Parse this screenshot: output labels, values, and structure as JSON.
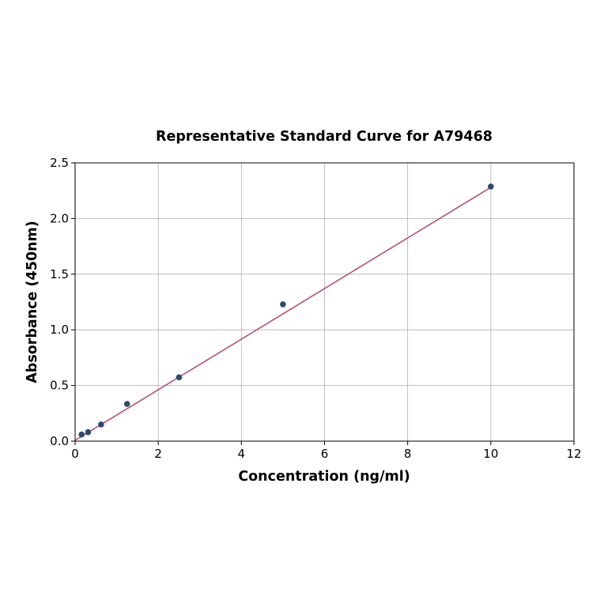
{
  "chart_data": {
    "type": "scatter",
    "title": "Representative Standard Curve for A79468",
    "xlabel": "Concentration (ng/ml)",
    "ylabel": "Absorbance (450nm)",
    "xlim": [
      0,
      12
    ],
    "ylim": [
      0,
      2.5
    ],
    "xticks": [
      0,
      2,
      4,
      6,
      8,
      10,
      12
    ],
    "yticks": [
      0.0,
      0.5,
      1.0,
      1.5,
      2.0,
      2.5
    ],
    "xtick_labels": [
      "0",
      "2",
      "4",
      "6",
      "8",
      "10",
      "12"
    ],
    "ytick_labels": [
      "0.0",
      "0.5",
      "1.0",
      "1.5",
      "2.0",
      "2.5"
    ],
    "grid": true,
    "points": {
      "x": [
        0.156,
        0.3125,
        0.625,
        1.25,
        2.5,
        5,
        10
      ],
      "y": [
        0.06,
        0.08,
        0.15,
        0.334,
        0.573,
        1.229,
        2.287
      ],
      "color": "#2e4a6e"
    },
    "fit_line": {
      "x": [
        0,
        10
      ],
      "y": [
        0.007,
        2.28
      ],
      "color": "#b5456e"
    }
  }
}
